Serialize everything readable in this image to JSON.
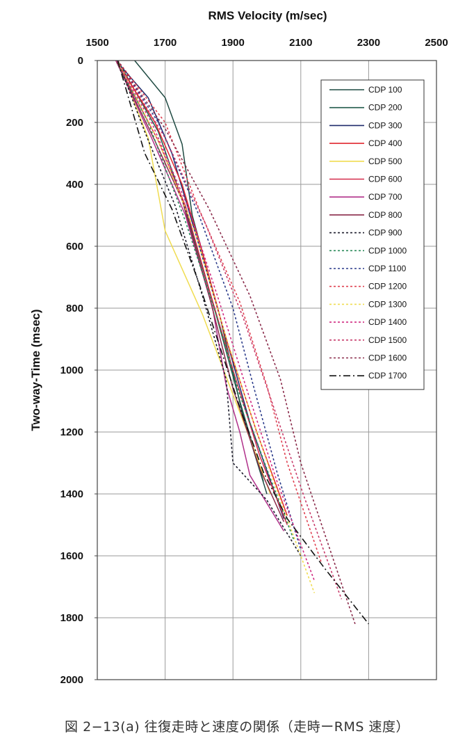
{
  "chart_data": {
    "type": "line",
    "title": "",
    "xlabel": "RMS Velocity (m/sec)",
    "ylabel": "Two-way-Time (msec)",
    "xlim": [
      1500,
      2500
    ],
    "ylim": [
      0,
      2000
    ],
    "x_axis_position": "top",
    "y_axis_inverted": true,
    "x_ticks": [
      "1500",
      "1700",
      "1900",
      "2100",
      "2300",
      "2500"
    ],
    "y_ticks": [
      "0",
      "200",
      "400",
      "600",
      "800",
      "1000",
      "1200",
      "1400",
      "1600",
      "1800",
      "2000"
    ],
    "grid": true,
    "legend": "top-right inside plot",
    "series": [
      {
        "name": "CDP 100",
        "color": "#1f4a42",
        "dash": "solid",
        "points": [
          [
            1610,
            0
          ],
          [
            1700,
            120
          ],
          [
            1750,
            270
          ],
          [
            1780,
            500
          ],
          [
            1860,
            820
          ],
          [
            1930,
            1150
          ],
          [
            2000,
            1400
          ]
        ]
      },
      {
        "name": "CDP 200",
        "color": "#1f5a4a",
        "dash": "solid",
        "points": [
          [
            1560,
            0
          ],
          [
            1680,
            230
          ],
          [
            1760,
            480
          ],
          [
            1850,
            820
          ],
          [
            1920,
            1100
          ],
          [
            1990,
            1360
          ]
        ]
      },
      {
        "name": "CDP 300",
        "color": "#1e2a6a",
        "dash": "solid",
        "points": [
          [
            1555,
            0
          ],
          [
            1650,
            120
          ],
          [
            1720,
            300
          ],
          [
            1790,
            560
          ],
          [
            1870,
            860
          ],
          [
            1950,
            1170
          ],
          [
            2050,
            1480
          ]
        ]
      },
      {
        "name": "CDP 400",
        "color": "#e0262e",
        "dash": "solid",
        "points": [
          [
            1555,
            0
          ],
          [
            1670,
            200
          ],
          [
            1750,
            400
          ],
          [
            1810,
            620
          ],
          [
            1880,
            900
          ],
          [
            1970,
            1200
          ],
          [
            2060,
            1470
          ]
        ]
      },
      {
        "name": "CDP 500",
        "color": "#f0dc50",
        "dash": "solid",
        "points": [
          [
            1560,
            0
          ],
          [
            1650,
            250
          ],
          [
            1700,
            550
          ],
          [
            1810,
            820
          ],
          [
            1890,
            1050
          ],
          [
            1960,
            1250
          ],
          [
            2010,
            1400
          ]
        ]
      },
      {
        "name": "CDP 600",
        "color": "#d42a4a",
        "dash": "solid",
        "points": [
          [
            1555,
            0
          ],
          [
            1680,
            260
          ],
          [
            1760,
            470
          ],
          [
            1830,
            740
          ],
          [
            1900,
            1000
          ],
          [
            1980,
            1280
          ],
          [
            2060,
            1500
          ]
        ]
      },
      {
        "name": "CDP 700",
        "color": "#b0308a",
        "dash": "solid",
        "points": [
          [
            1555,
            0
          ],
          [
            1660,
            250
          ],
          [
            1760,
            500
          ],
          [
            1840,
            800
          ],
          [
            1880,
            1050
          ],
          [
            1920,
            1200
          ],
          [
            1950,
            1340
          ],
          [
            2050,
            1520
          ]
        ]
      },
      {
        "name": "CDP 800",
        "color": "#8a2a4a",
        "dash": "solid",
        "points": [
          [
            1555,
            0
          ],
          [
            1670,
            260
          ],
          [
            1750,
            450
          ],
          [
            1830,
            760
          ],
          [
            1900,
            1060
          ],
          [
            1980,
            1320
          ],
          [
            2050,
            1490
          ]
        ]
      },
      {
        "name": "CDP 900",
        "color": "#1a1a2a",
        "dash": "dotted",
        "points": [
          [
            1560,
            0
          ],
          [
            1640,
            230
          ],
          [
            1730,
            470
          ],
          [
            1810,
            760
          ],
          [
            1880,
            1030
          ],
          [
            1900,
            1300
          ],
          [
            2000,
            1420
          ],
          [
            2100,
            1600
          ]
        ]
      },
      {
        "name": "CDP 1000",
        "color": "#2a8a5a",
        "dash": "dotted",
        "points": [
          [
            1555,
            0
          ],
          [
            1650,
            200
          ],
          [
            1760,
            520
          ],
          [
            1850,
            820
          ],
          [
            1920,
            1080
          ],
          [
            2000,
            1320
          ],
          [
            2080,
            1550
          ]
        ]
      },
      {
        "name": "CDP 1100",
        "color": "#2a3a8a",
        "dash": "dotted",
        "points": [
          [
            1560,
            0
          ],
          [
            1680,
            200
          ],
          [
            1800,
            500
          ],
          [
            1900,
            800
          ],
          [
            1960,
            1050
          ],
          [
            2030,
            1330
          ],
          [
            2100,
            1580
          ]
        ]
      },
      {
        "name": "CDP 1200",
        "color": "#e04050",
        "dash": "dotted",
        "points": [
          [
            1560,
            0
          ],
          [
            1700,
            200
          ],
          [
            1800,
            480
          ],
          [
            1920,
            780
          ],
          [
            2000,
            1050
          ],
          [
            2060,
            1300
          ],
          [
            2160,
            1620
          ]
        ]
      },
      {
        "name": "CDP 1300",
        "color": "#f0dc50",
        "dash": "dotted",
        "points": [
          [
            1560,
            0
          ],
          [
            1680,
            260
          ],
          [
            1790,
            560
          ],
          [
            1870,
            860
          ],
          [
            1940,
            1100
          ],
          [
            2020,
            1360
          ],
          [
            2140,
            1720
          ]
        ]
      },
      {
        "name": "CDP 1400",
        "color": "#d02a80",
        "dash": "dotted",
        "points": [
          [
            1555,
            0
          ],
          [
            1660,
            200
          ],
          [
            1770,
            480
          ],
          [
            1860,
            780
          ],
          [
            1940,
            1060
          ],
          [
            2030,
            1360
          ],
          [
            2140,
            1680
          ]
        ]
      },
      {
        "name": "CDP 1500",
        "color": "#c83a6a",
        "dash": "dotted",
        "points": [
          [
            1560,
            0
          ],
          [
            1700,
            250
          ],
          [
            1820,
            530
          ],
          [
            1930,
            830
          ],
          [
            2020,
            1120
          ],
          [
            2110,
            1410
          ],
          [
            2220,
            1740
          ]
        ]
      },
      {
        "name": "CDP 1600",
        "color": "#8a2a4a",
        "dash": "dotted",
        "points": [
          [
            1560,
            0
          ],
          [
            1700,
            220
          ],
          [
            1830,
            480
          ],
          [
            1950,
            760
          ],
          [
            2040,
            1030
          ],
          [
            2100,
            1300
          ],
          [
            2180,
            1560
          ],
          [
            2260,
            1820
          ]
        ]
      },
      {
        "name": "CDP 1700",
        "color": "#111111",
        "dash": "dashdot",
        "points": [
          [
            1560,
            0
          ],
          [
            1600,
            150
          ],
          [
            1640,
            300
          ],
          [
            1720,
            480
          ],
          [
            1800,
            720
          ],
          [
            1860,
            920
          ],
          [
            1920,
            1120
          ],
          [
            1990,
            1330
          ],
          [
            2060,
            1480
          ],
          [
            2170,
            1640
          ],
          [
            2300,
            1820
          ]
        ]
      }
    ]
  },
  "caption": "図 2−13(a) 往復走時と速度の関係（走時ーRMS 速度）"
}
